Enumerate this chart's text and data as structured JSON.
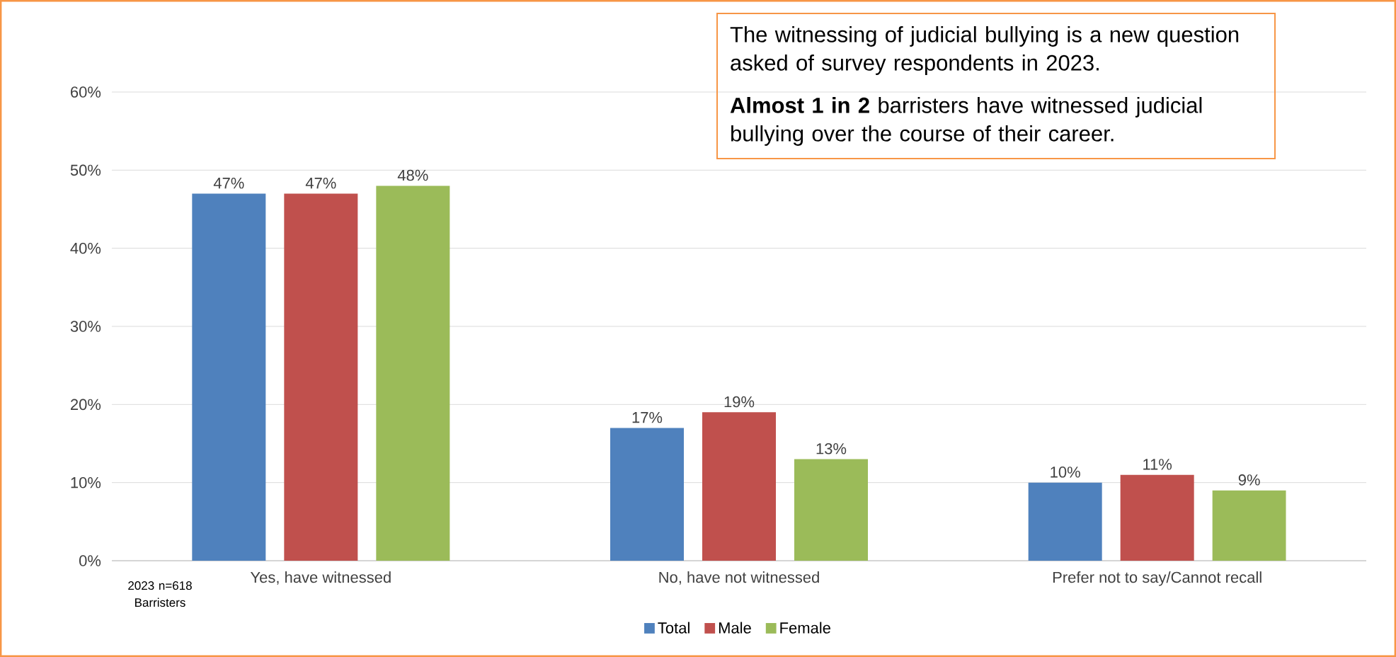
{
  "chart_data": {
    "type": "bar",
    "categories": [
      "Yes, have witnessed",
      "No, have not witnessed",
      "Prefer not to say/Cannot recall"
    ],
    "series": [
      {
        "name": "Total",
        "color": "#4f81bd",
        "values": [
          47,
          17,
          10
        ],
        "value_labels": [
          "47%",
          "17%",
          "10%"
        ]
      },
      {
        "name": "Male",
        "color": "#c0504d",
        "values": [
          47,
          19,
          11
        ],
        "value_labels": [
          "47%",
          "19%",
          "11%"
        ]
      },
      {
        "name": "Female",
        "color": "#9bbb59",
        "values": [
          48,
          13,
          9
        ],
        "value_labels": [
          "48%",
          "13%",
          "9%"
        ]
      }
    ],
    "ylim": [
      0,
      60
    ],
    "yticks": [
      {
        "value": 0,
        "label": "0%"
      },
      {
        "value": 10,
        "label": "10%"
      },
      {
        "value": 20,
        "label": "20%"
      },
      {
        "value": 30,
        "label": "30%"
      },
      {
        "value": 40,
        "label": "40%"
      },
      {
        "value": 50,
        "label": "50%"
      },
      {
        "value": 60,
        "label": "60%"
      }
    ],
    "grid": "y",
    "legend": "bottom",
    "annotations": [
      "The witnessing of judicial bullying is a new question asked of survey respondents in 2023.",
      "**Almost 1 in 2** barristers have witnessed judicial bullying over the course of their career.",
      "2023 n=618 Barristers"
    ]
  }
}
